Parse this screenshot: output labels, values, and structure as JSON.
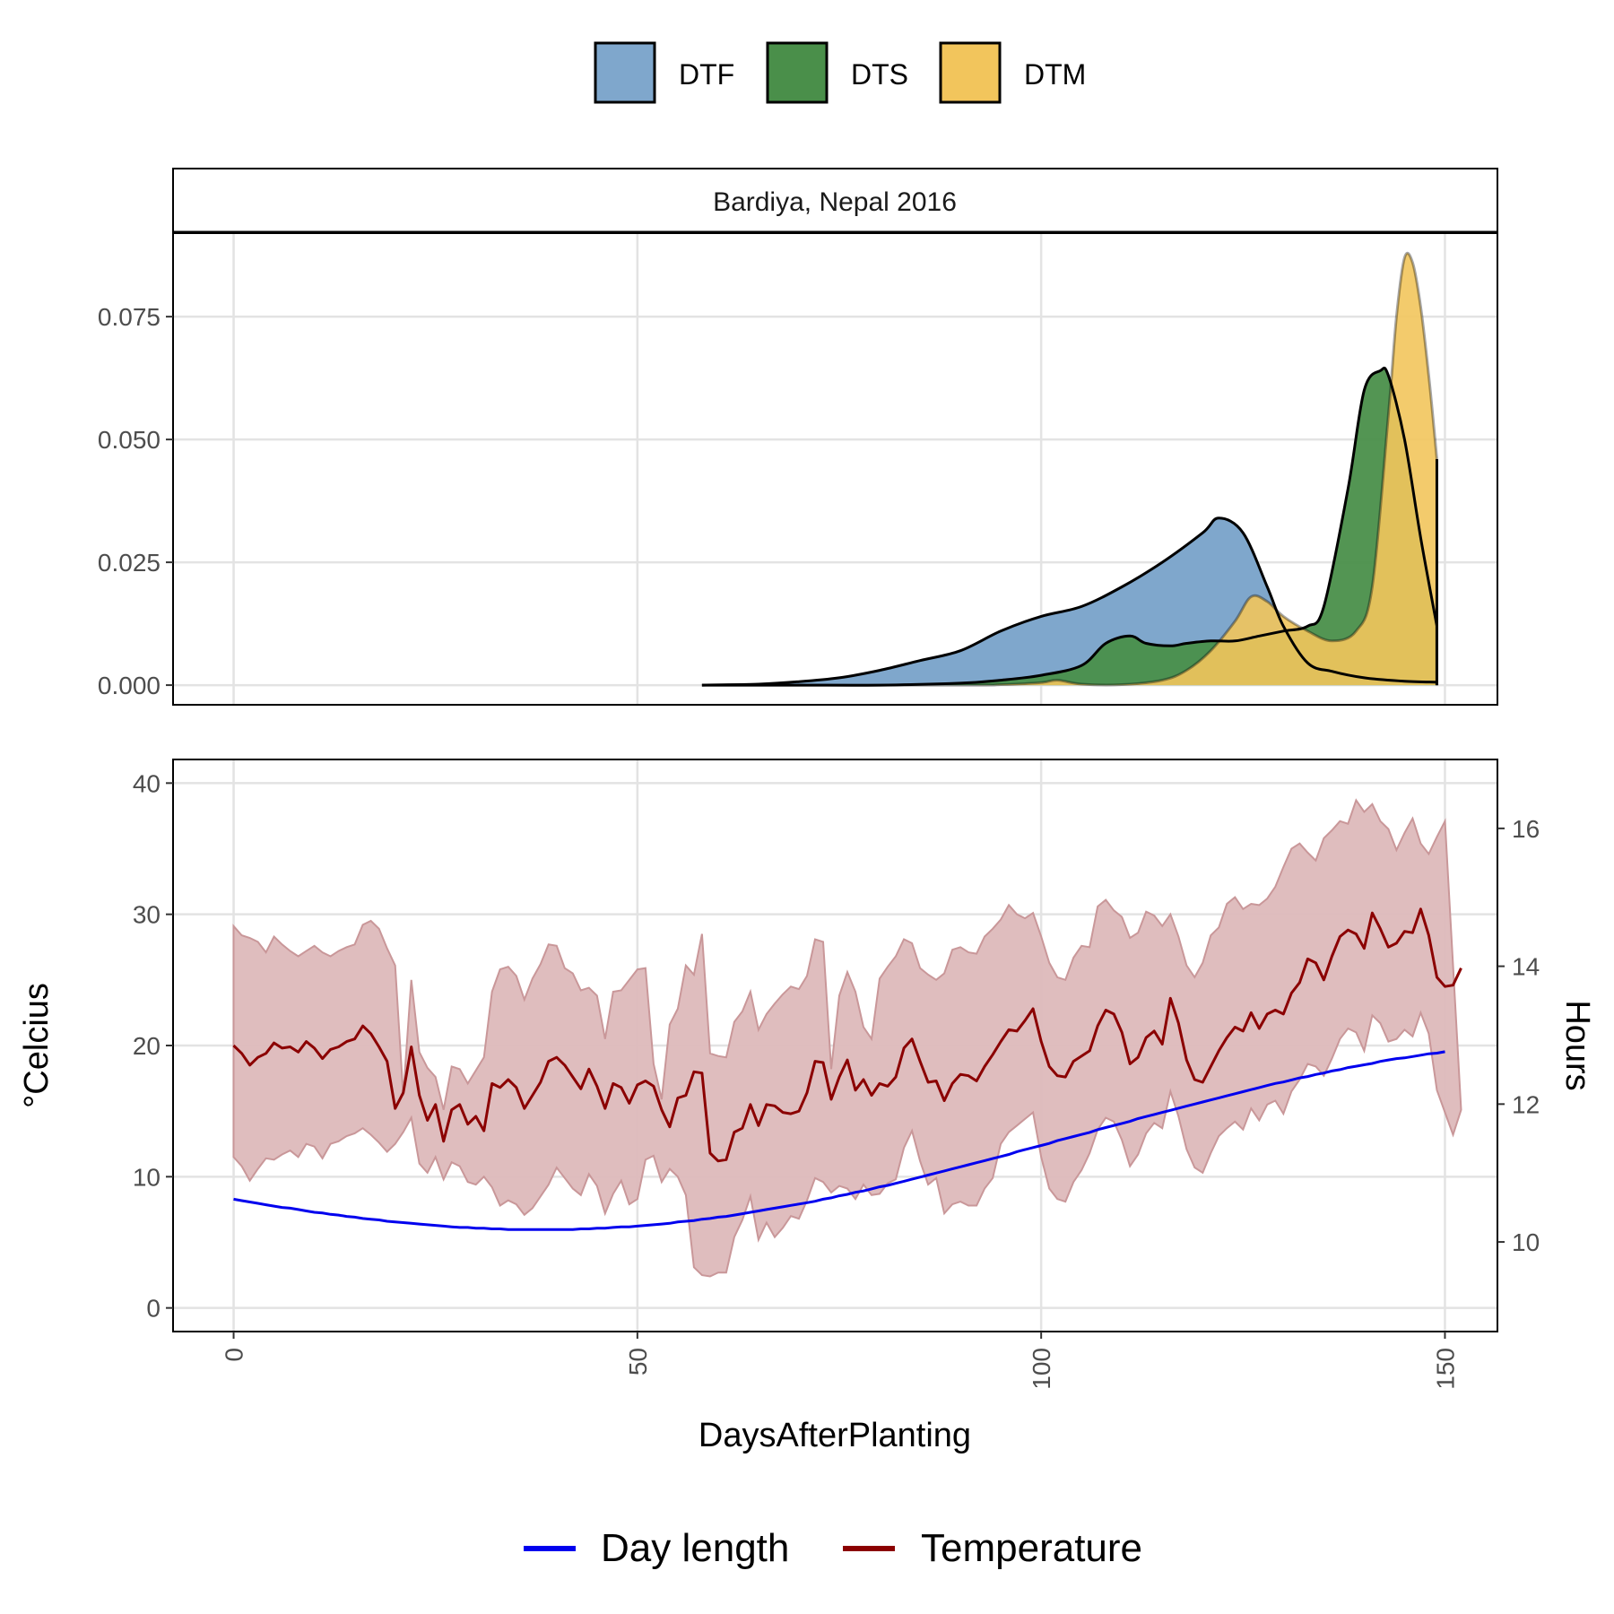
{
  "colors": {
    "dtf": "#7fa7cc",
    "dts": "#4a8f4a",
    "dtm": "#f2c55c",
    "temp_line": "#8b0000",
    "temp_band": "#ddb9ba",
    "day_length": "#0000ee",
    "grid": "#e3e3e3",
    "tick_text": "#4d4d4d"
  },
  "top_legend": [
    {
      "key": "dtf",
      "label": "DTF",
      "icon": "blue-fill-swatch"
    },
    {
      "key": "dts",
      "label": "DTS",
      "icon": "green-fill-swatch"
    },
    {
      "key": "dtm",
      "label": "DTM",
      "icon": "yellow-fill-swatch"
    }
  ],
  "bottom_legend": [
    {
      "key": "day_length",
      "label": "Day length",
      "icon": "blue-line-swatch"
    },
    {
      "key": "temperature",
      "label": "Temperature",
      "icon": "red-line-swatch"
    }
  ],
  "chart_data": [
    {
      "type": "area",
      "panel_title": "Bardiya, Nepal 2016",
      "xlim": [
        -7.5,
        156.5
      ],
      "ylim": [
        -0.004,
        0.092
      ],
      "x_ticks": [
        0,
        50,
        100,
        150
      ],
      "y_ticks": [
        0.0,
        0.025,
        0.05,
        0.075
      ],
      "y_tick_labels": [
        "0.000",
        "0.025",
        "0.050",
        "0.075"
      ],
      "grid": true,
      "legend_position": "top",
      "series": [
        {
          "name": "DTF",
          "x": [
            58,
            65,
            70,
            75,
            80,
            85,
            90,
            95,
            100,
            105,
            110,
            115,
            120,
            122,
            125,
            128,
            130,
            133,
            136,
            140,
            145,
            149
          ],
          "y": [
            0,
            0.0002,
            0.0007,
            0.0015,
            0.003,
            0.005,
            0.007,
            0.011,
            0.014,
            0.016,
            0.02,
            0.025,
            0.031,
            0.034,
            0.031,
            0.02,
            0.012,
            0.0045,
            0.0028,
            0.0015,
            0.0008,
            0.0006
          ]
        },
        {
          "name": "DTS",
          "x": [
            58,
            70,
            80,
            90,
            95,
            100,
            105,
            108,
            111,
            113,
            116,
            118,
            121,
            124,
            127,
            130,
            133,
            135,
            138,
            140,
            142,
            143,
            145,
            147,
            149
          ],
          "y": [
            0,
            0,
            0,
            0.0004,
            0.001,
            0.002,
            0.004,
            0.0085,
            0.01,
            0.0085,
            0.008,
            0.0085,
            0.009,
            0.009,
            0.01,
            0.011,
            0.012,
            0.016,
            0.04,
            0.06,
            0.064,
            0.063,
            0.05,
            0.03,
            0.012
          ]
        },
        {
          "name": "DTM",
          "x": [
            58,
            90,
            95,
            100,
            102,
            105,
            110,
            115,
            118,
            121,
            124,
            126,
            128,
            130,
            133,
            136,
            139,
            141,
            143,
            144,
            145,
            146,
            147,
            148,
            149
          ],
          "y": [
            0,
            0,
            0.0001,
            0.0005,
            0.001,
            0.0002,
            0.0001,
            0.001,
            0.003,
            0.007,
            0.013,
            0.018,
            0.017,
            0.014,
            0.011,
            0.009,
            0.011,
            0.02,
            0.055,
            0.075,
            0.087,
            0.086,
            0.077,
            0.063,
            0.046
          ]
        }
      ]
    },
    {
      "type": "line",
      "xlabel": "DaysAfterPlanting",
      "ylabel": "°Celcius",
      "y2label": "Hours",
      "xlim": [
        -7.5,
        156.5
      ],
      "ylim": [
        -1.8,
        41.8
      ],
      "y2lim": [
        8.7,
        17.0
      ],
      "x_ticks": [
        0,
        50,
        100,
        150
      ],
      "y_ticks": [
        0,
        10,
        20,
        30,
        40
      ],
      "y2_ticks": [
        10,
        12,
        14,
        16
      ],
      "grid": true,
      "legend_position": "bottom",
      "series": [
        {
          "name": "Temperature",
          "axis": "left",
          "x_start": 0,
          "x_step": 1,
          "values": [
            20.0,
            19.4,
            18.5,
            19.1,
            19.4,
            20.2,
            19.8,
            19.9,
            19.5,
            20.3,
            19.8,
            19.0,
            19.7,
            19.9,
            20.3,
            20.5,
            21.5,
            20.9,
            19.9,
            18.8,
            15.2,
            16.4,
            19.9,
            16.2,
            14.3,
            15.5,
            12.7,
            15.1,
            15.5,
            14.0,
            14.6,
            13.5,
            17.1,
            16.8,
            17.4,
            16.8,
            15.2,
            16.2,
            17.2,
            18.8,
            19.1,
            18.5,
            17.6,
            16.7,
            18.2,
            16.9,
            15.2,
            17.1,
            16.8,
            15.6,
            17.0,
            17.3,
            16.9,
            15.1,
            13.8,
            16.0,
            16.2,
            18.0,
            17.9,
            11.8,
            11.2,
            11.3,
            13.4,
            13.7,
            15.5,
            13.9,
            15.5,
            15.4,
            14.9,
            14.8,
            15.0,
            16.4,
            18.8,
            18.7,
            15.9,
            17.6,
            18.9,
            16.6,
            17.4,
            16.2,
            17.1,
            16.9,
            17.6,
            19.8,
            20.5,
            18.8,
            17.2,
            17.3,
            15.8,
            17.1,
            17.8,
            17.7,
            17.3,
            18.4,
            19.3,
            20.3,
            21.2,
            21.1,
            21.9,
            22.8,
            20.3,
            18.4,
            17.7,
            17.6,
            18.8,
            19.2,
            19.6,
            21.5,
            22.7,
            22.4,
            21.0,
            18.6,
            19.1,
            20.6,
            21.1,
            20.1,
            23.6,
            21.7,
            18.9,
            17.4,
            17.2,
            18.4,
            19.6,
            20.6,
            21.4,
            21.1,
            22.5,
            21.3,
            22.4,
            22.7,
            22.4,
            24.0,
            24.8,
            26.6,
            26.3,
            25.0,
            26.8,
            28.3,
            28.8,
            28.5,
            27.4,
            30.1,
            28.9,
            27.5,
            27.8,
            28.7,
            28.6,
            30.4,
            28.4,
            25.2,
            24.5,
            24.6,
            25.9
          ]
        },
        {
          "name": "Temperature max",
          "axis": "left",
          "x_start": 0,
          "x_step": 1,
          "values": [
            29.1,
            28.4,
            28.2,
            27.9,
            27.1,
            28.3,
            27.7,
            27.2,
            26.8,
            27.2,
            27.6,
            27.1,
            26.8,
            27.2,
            27.5,
            27.7,
            29.2,
            29.5,
            28.9,
            27.4,
            26.1,
            16.2,
            25.0,
            19.5,
            18.3,
            17.6,
            15.1,
            18.4,
            18.2,
            17.1,
            18.1,
            19.1,
            24.1,
            25.8,
            26.0,
            25.3,
            23.5,
            25.1,
            26.2,
            27.7,
            27.6,
            25.9,
            25.5,
            24.2,
            24.4,
            23.8,
            20.5,
            24.1,
            24.2,
            25.0,
            25.8,
            25.9,
            18.6,
            15.9,
            21.6,
            22.8,
            26.1,
            25.4,
            28.5,
            19.4,
            19.2,
            19.1,
            21.8,
            22.6,
            24.1,
            21.2,
            22.4,
            23.2,
            23.9,
            24.5,
            24.3,
            25.3,
            28.1,
            27.9,
            18.2,
            23.8,
            25.6,
            24.1,
            21.4,
            20.5,
            25.1,
            26.0,
            26.8,
            28.1,
            27.8,
            25.9,
            25.4,
            25.0,
            25.5,
            27.3,
            27.5,
            27.1,
            27.0,
            28.3,
            28.9,
            29.6,
            30.7,
            30.0,
            29.7,
            30.1,
            28.3,
            26.3,
            25.2,
            25.0,
            26.7,
            27.6,
            27.5,
            30.6,
            31.1,
            30.3,
            29.8,
            28.2,
            28.6,
            30.2,
            29.9,
            29.1,
            30.0,
            28.3,
            26.1,
            25.2,
            26.3,
            28.4,
            29.0,
            30.8,
            31.3,
            30.4,
            30.8,
            30.7,
            31.2,
            32.1,
            33.6,
            35.0,
            35.4,
            34.7,
            34.1,
            35.8,
            36.4,
            37.1,
            36.9,
            38.7,
            37.8,
            38.4,
            37.1,
            36.5,
            34.9,
            36.2,
            37.3,
            35.4,
            34.6,
            35.9,
            37.1
          ]
        },
        {
          "name": "Temperature min",
          "axis": "left",
          "x_start": 0,
          "x_step": 1,
          "values": [
            11.5,
            10.8,
            9.7,
            10.6,
            11.4,
            11.3,
            11.7,
            12.0,
            11.5,
            12.5,
            12.3,
            11.4,
            12.5,
            12.7,
            13.1,
            13.3,
            13.7,
            13.2,
            12.6,
            11.9,
            12.5,
            13.4,
            14.5,
            11.0,
            10.3,
            11.5,
            9.8,
            11.1,
            10.8,
            9.6,
            9.4,
            10.0,
            9.2,
            7.8,
            8.2,
            7.9,
            7.1,
            7.6,
            8.5,
            9.4,
            10.7,
            9.9,
            9.1,
            8.6,
            10.2,
            9.3,
            7.2,
            8.7,
            9.7,
            7.9,
            8.3,
            11.3,
            11.6,
            9.6,
            10.6,
            10.0,
            8.6,
            3.1,
            2.5,
            2.4,
            2.7,
            2.7,
            5.4,
            6.7,
            8.5,
            5.2,
            6.5,
            5.4,
            6.1,
            7.0,
            6.8,
            8.2,
            9.9,
            9.6,
            8.8,
            9.3,
            9.1,
            8.3,
            9.4,
            8.6,
            8.7,
            9.5,
            9.8,
            12.2,
            13.5,
            11.2,
            9.4,
            9.9,
            7.2,
            7.9,
            8.1,
            7.8,
            7.8,
            9.1,
            9.9,
            12.5,
            13.4,
            13.9,
            14.4,
            14.9,
            11.5,
            9.1,
            8.3,
            8.1,
            9.6,
            10.5,
            11.8,
            13.6,
            14.5,
            14.2,
            12.8,
            10.8,
            11.7,
            13.3,
            14.1,
            13.7,
            16.5,
            14.6,
            12.1,
            10.7,
            10.3,
            11.8,
            13.1,
            13.7,
            14.2,
            13.6,
            15.2,
            14.3,
            15.5,
            15.8,
            14.8,
            16.5,
            17.4,
            18.6,
            18.4,
            17.7,
            19.0,
            20.5,
            21.3,
            21.0,
            19.6,
            22.3,
            21.7,
            20.3,
            20.5,
            21.2,
            20.7,
            22.5,
            20.9,
            16.6,
            14.9,
            13.2,
            15.1
          ]
        },
        {
          "name": "Day length",
          "axis": "right",
          "x_start": 0,
          "x_step": 1,
          "values": [
            10.62,
            10.6,
            10.58,
            10.56,
            10.54,
            10.52,
            10.5,
            10.49,
            10.47,
            10.45,
            10.43,
            10.42,
            10.4,
            10.39,
            10.37,
            10.36,
            10.34,
            10.33,
            10.32,
            10.3,
            10.29,
            10.28,
            10.27,
            10.26,
            10.25,
            10.24,
            10.23,
            10.22,
            10.21,
            10.21,
            10.2,
            10.2,
            10.19,
            10.19,
            10.18,
            10.18,
            10.18,
            10.18,
            10.18,
            10.18,
            10.18,
            10.18,
            10.18,
            10.19,
            10.19,
            10.2,
            10.2,
            10.21,
            10.22,
            10.22,
            10.23,
            10.24,
            10.25,
            10.26,
            10.27,
            10.29,
            10.3,
            10.31,
            10.33,
            10.34,
            10.36,
            10.37,
            10.39,
            10.41,
            10.43,
            10.45,
            10.47,
            10.49,
            10.51,
            10.53,
            10.55,
            10.57,
            10.59,
            10.62,
            10.64,
            10.67,
            10.69,
            10.72,
            10.74,
            10.77,
            10.8,
            10.82,
            10.85,
            10.88,
            10.91,
            10.94,
            10.97,
            11.0,
            11.03,
            11.06,
            11.09,
            11.12,
            11.15,
            11.18,
            11.21,
            11.24,
            11.27,
            11.31,
            11.34,
            11.37,
            11.4,
            11.43,
            11.47,
            11.5,
            11.53,
            11.56,
            11.59,
            11.63,
            11.66,
            11.69,
            11.72,
            11.75,
            11.79,
            11.82,
            11.85,
            11.88,
            11.91,
            11.94,
            11.97,
            12.0,
            12.03,
            12.06,
            12.09,
            12.12,
            12.15,
            12.18,
            12.21,
            12.24,
            12.27,
            12.3,
            12.32,
            12.35,
            12.38,
            12.4,
            12.43,
            12.45,
            12.48,
            12.5,
            12.53,
            12.55,
            12.57,
            12.59,
            12.62,
            12.64,
            12.66,
            12.67,
            12.69,
            12.71,
            12.73,
            12.74,
            12.76
          ]
        }
      ]
    }
  ]
}
